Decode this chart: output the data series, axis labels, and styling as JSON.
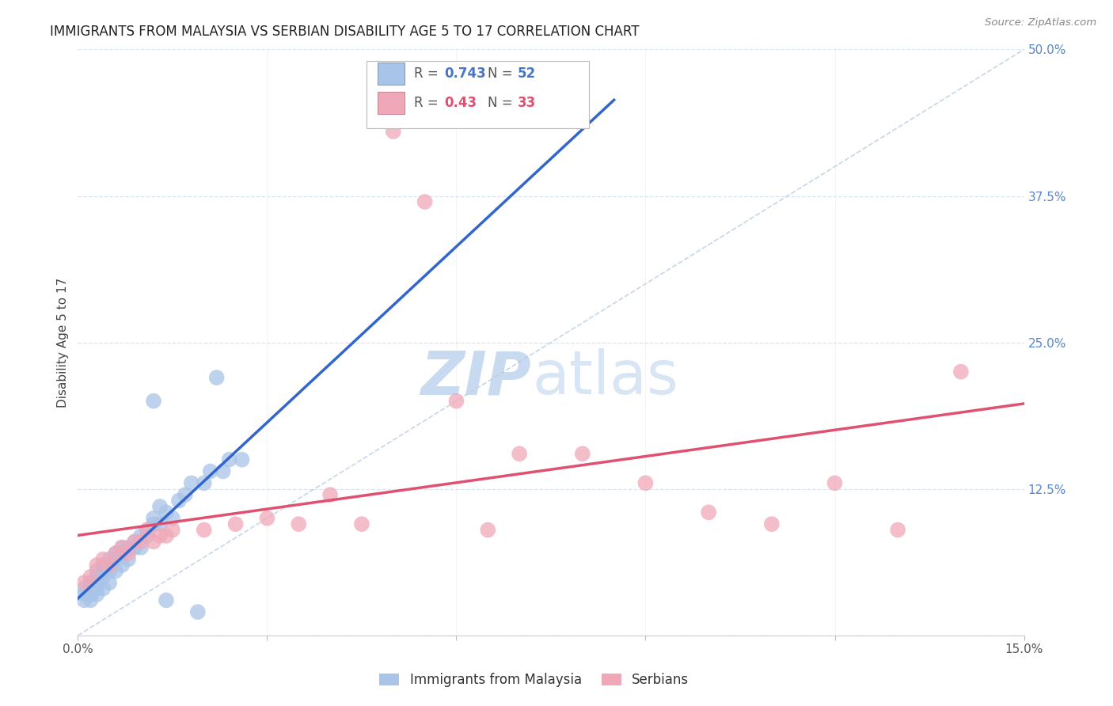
{
  "title": "IMMIGRANTS FROM MALAYSIA VS SERBIAN DISABILITY AGE 5 TO 17 CORRELATION CHART",
  "source": "Source: ZipAtlas.com",
  "ylabel": "Disability Age 5 to 17",
  "xlim": [
    0.0,
    0.15
  ],
  "ylim": [
    0.0,
    0.5
  ],
  "yticks_right": [
    0.0,
    0.125,
    0.25,
    0.375,
    0.5
  ],
  "yticklabels_right": [
    "",
    "12.5%",
    "25.0%",
    "37.5%",
    "50.0%"
  ],
  "xtick_left_label": "0.0%",
  "xtick_right_label": "15.0%",
  "R_malaysia": 0.743,
  "N_malaysia": 52,
  "R_serbian": 0.43,
  "N_serbian": 33,
  "malaysia_color": "#a8c4e8",
  "serbian_color": "#f0a8b8",
  "malaysia_trend_color": "#3366cc",
  "serbian_trend_color": "#e05070",
  "ref_line_color": "#b8cce4",
  "background_color": "#ffffff",
  "grid_color": "#d8e4f0",
  "watermark_color": "#c8daf0",
  "malaysia_scatter_x": [
    0.001,
    0.001,
    0.001,
    0.002,
    0.002,
    0.002,
    0.002,
    0.003,
    0.003,
    0.003,
    0.003,
    0.003,
    0.004,
    0.004,
    0.004,
    0.004,
    0.005,
    0.005,
    0.005,
    0.005,
    0.006,
    0.006,
    0.006,
    0.007,
    0.007,
    0.007,
    0.008,
    0.008,
    0.009,
    0.009,
    0.01,
    0.01,
    0.011,
    0.011,
    0.012,
    0.012,
    0.013,
    0.013,
    0.014,
    0.015,
    0.016,
    0.017,
    0.018,
    0.019,
    0.02,
    0.021,
    0.022,
    0.023,
    0.024,
    0.026,
    0.012,
    0.014
  ],
  "malaysia_scatter_y": [
    0.03,
    0.035,
    0.04,
    0.03,
    0.035,
    0.04,
    0.045,
    0.035,
    0.04,
    0.045,
    0.05,
    0.055,
    0.04,
    0.05,
    0.055,
    0.06,
    0.045,
    0.055,
    0.06,
    0.065,
    0.055,
    0.065,
    0.07,
    0.06,
    0.07,
    0.075,
    0.065,
    0.075,
    0.075,
    0.08,
    0.075,
    0.085,
    0.085,
    0.09,
    0.095,
    0.1,
    0.095,
    0.11,
    0.105,
    0.1,
    0.115,
    0.12,
    0.13,
    0.02,
    0.13,
    0.14,
    0.22,
    0.14,
    0.15,
    0.15,
    0.2,
    0.03
  ],
  "serbian_scatter_x": [
    0.001,
    0.002,
    0.003,
    0.004,
    0.005,
    0.006,
    0.007,
    0.008,
    0.009,
    0.01,
    0.011,
    0.012,
    0.013,
    0.014,
    0.015,
    0.02,
    0.025,
    0.03,
    0.035,
    0.04,
    0.045,
    0.05,
    0.055,
    0.06,
    0.065,
    0.07,
    0.08,
    0.09,
    0.1,
    0.11,
    0.12,
    0.13,
    0.14
  ],
  "serbian_scatter_y": [
    0.045,
    0.05,
    0.06,
    0.065,
    0.06,
    0.07,
    0.075,
    0.07,
    0.08,
    0.08,
    0.09,
    0.08,
    0.085,
    0.085,
    0.09,
    0.09,
    0.095,
    0.1,
    0.095,
    0.12,
    0.095,
    0.43,
    0.37,
    0.2,
    0.09,
    0.155,
    0.155,
    0.13,
    0.105,
    0.095,
    0.13,
    0.09,
    0.225
  ],
  "title_fontsize": 12,
  "label_fontsize": 11,
  "tick_fontsize": 11,
  "legend_fontsize": 12
}
